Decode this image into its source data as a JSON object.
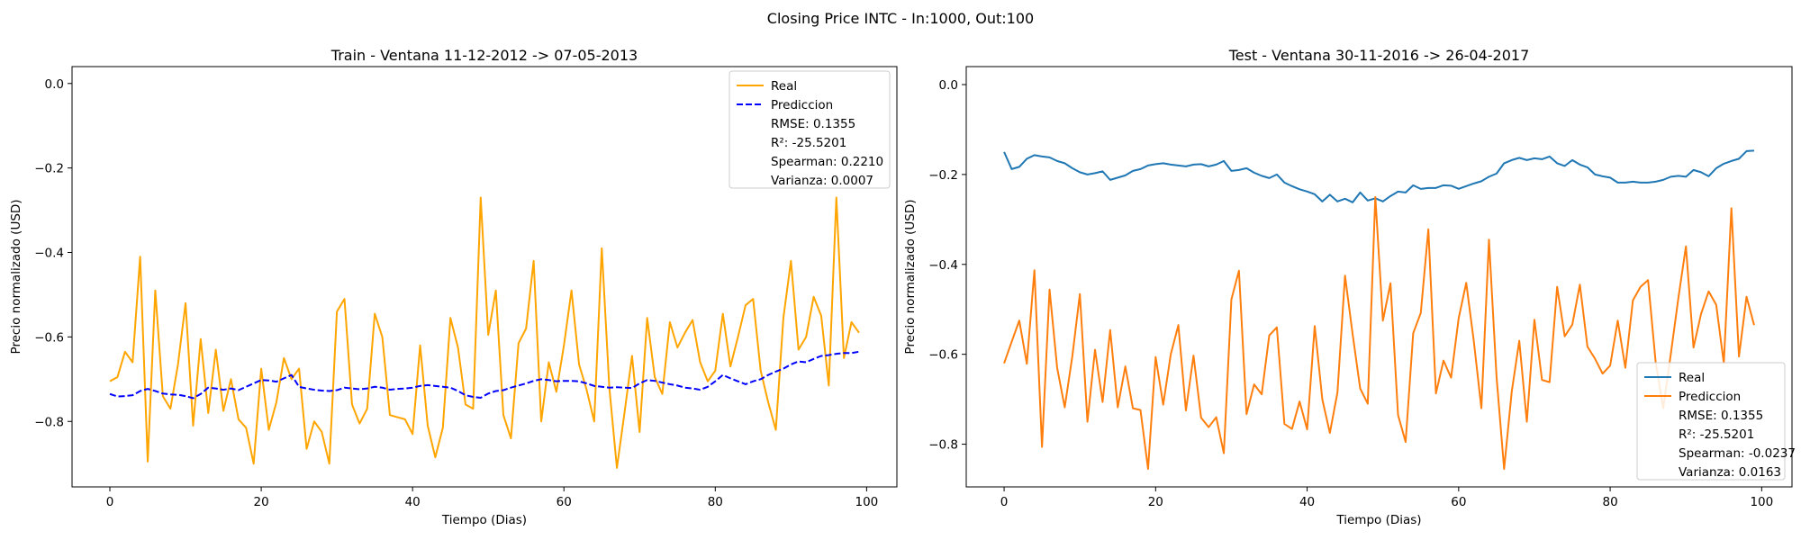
{
  "figure": {
    "suptitle": "Closing Price INTC - In:1000, Out:100"
  },
  "chart_data": [
    {
      "type": "line",
      "title": "Train - Ventana 11-12-2012 -> 07-05-2013",
      "xlabel": "Tiempo (Dias)",
      "ylabel": "Precio normalizado (USD)",
      "xlim": [
        -5,
        104
      ],
      "ylim": [
        -0.955,
        0.04
      ],
      "xticks": [
        0,
        20,
        40,
        60,
        80,
        100
      ],
      "yticks": [
        -0.8,
        -0.6,
        -0.4,
        -0.2,
        0.0
      ],
      "ytick_labels": [
        "−0.8",
        "−0.6",
        "−0.4",
        "−0.2",
        "0.0"
      ],
      "grid": false,
      "legend_position": "top-right",
      "series": [
        {
          "name": "Real",
          "color": "#FFA500",
          "style": "solid",
          "values": [
            -0.705,
            -0.695,
            -0.635,
            -0.66,
            -0.41,
            -0.895,
            -0.49,
            -0.74,
            -0.77,
            -0.665,
            -0.52,
            -0.81,
            -0.605,
            -0.78,
            -0.63,
            -0.775,
            -0.7,
            -0.795,
            -0.815,
            -0.9,
            -0.675,
            -0.82,
            -0.755,
            -0.65,
            -0.7,
            -0.675,
            -0.865,
            -0.8,
            -0.825,
            -0.9,
            -0.54,
            -0.51,
            -0.76,
            -0.805,
            -0.77,
            -0.545,
            -0.6,
            -0.785,
            -0.79,
            -0.795,
            -0.83,
            -0.62,
            -0.81,
            -0.885,
            -0.815,
            -0.555,
            -0.625,
            -0.76,
            -0.77,
            -0.27,
            -0.595,
            -0.49,
            -0.785,
            -0.84,
            -0.615,
            -0.58,
            -0.42,
            -0.8,
            -0.66,
            -0.73,
            -0.62,
            -0.49,
            -0.665,
            -0.725,
            -0.8,
            -0.39,
            -0.72,
            -0.91,
            -0.78,
            -0.645,
            -0.825,
            -0.555,
            -0.695,
            -0.735,
            -0.565,
            -0.625,
            -0.59,
            -0.56,
            -0.66,
            -0.705,
            -0.68,
            -0.545,
            -0.67,
            -0.6,
            -0.525,
            -0.51,
            -0.68,
            -0.755,
            -0.82,
            -0.555,
            -0.42,
            -0.63,
            -0.6,
            -0.505,
            -0.55,
            -0.715,
            -0.27,
            -0.65,
            -0.565,
            -0.59
          ]
        },
        {
          "name": "Prediccion",
          "color": "#0000FF",
          "style": "dashed",
          "values": [
            -0.735,
            -0.741,
            -0.74,
            -0.738,
            -0.728,
            -0.723,
            -0.728,
            -0.734,
            -0.736,
            -0.737,
            -0.74,
            -0.745,
            -0.735,
            -0.72,
            -0.722,
            -0.725,
            -0.722,
            -0.726,
            -0.718,
            -0.71,
            -0.702,
            -0.703,
            -0.706,
            -0.698,
            -0.69,
            -0.718,
            -0.722,
            -0.725,
            -0.727,
            -0.728,
            -0.726,
            -0.72,
            -0.722,
            -0.724,
            -0.722,
            -0.718,
            -0.72,
            -0.725,
            -0.723,
            -0.722,
            -0.72,
            -0.716,
            -0.714,
            -0.716,
            -0.718,
            -0.72,
            -0.728,
            -0.738,
            -0.742,
            -0.744,
            -0.734,
            -0.728,
            -0.726,
            -0.72,
            -0.715,
            -0.71,
            -0.704,
            -0.7,
            -0.702,
            -0.705,
            -0.704,
            -0.704,
            -0.705,
            -0.71,
            -0.716,
            -0.718,
            -0.72,
            -0.719,
            -0.72,
            -0.721,
            -0.71,
            -0.702,
            -0.704,
            -0.708,
            -0.712,
            -0.715,
            -0.72,
            -0.722,
            -0.725,
            -0.718,
            -0.705,
            -0.69,
            -0.698,
            -0.705,
            -0.712,
            -0.705,
            -0.7,
            -0.69,
            -0.682,
            -0.675,
            -0.665,
            -0.658,
            -0.66,
            -0.652,
            -0.645,
            -0.643,
            -0.64,
            -0.638,
            -0.638,
            -0.635
          ]
        }
      ],
      "legend_stats": [
        "RMSE: 0.1355",
        "R²: -25.5201",
        "Spearman: 0.2210",
        "Varianza: 0.0007"
      ]
    },
    {
      "type": "line",
      "title": "Test - Ventana 30-11-2016 -> 26-04-2017",
      "xlabel": "Tiempo (Dias)",
      "ylabel": "Precio normalizado (USD)",
      "xlim": [
        -5,
        104
      ],
      "ylim": [
        -0.895,
        0.04
      ],
      "xticks": [
        0,
        20,
        40,
        60,
        80,
        100
      ],
      "yticks": [
        -0.8,
        -0.6,
        -0.4,
        -0.2,
        0.0
      ],
      "ytick_labels": [
        "−0.8",
        "−0.6",
        "−0.4",
        "−0.2",
        "0.0"
      ],
      "grid": false,
      "legend_position": "bottom-right",
      "series": [
        {
          "name": "Real",
          "color": "#1F77B4",
          "style": "solid",
          "values": [
            -0.15,
            -0.188,
            -0.183,
            -0.165,
            -0.157,
            -0.16,
            -0.162,
            -0.17,
            -0.175,
            -0.186,
            -0.195,
            -0.2,
            -0.197,
            -0.193,
            -0.212,
            -0.207,
            -0.202,
            -0.192,
            -0.188,
            -0.18,
            -0.177,
            -0.175,
            -0.178,
            -0.18,
            -0.182,
            -0.178,
            -0.177,
            -0.182,
            -0.178,
            -0.17,
            -0.192,
            -0.19,
            -0.186,
            -0.196,
            -0.203,
            -0.208,
            -0.2,
            -0.218,
            -0.226,
            -0.233,
            -0.238,
            -0.244,
            -0.26,
            -0.245,
            -0.26,
            -0.254,
            -0.262,
            -0.24,
            -0.258,
            -0.253,
            -0.26,
            -0.248,
            -0.238,
            -0.24,
            -0.224,
            -0.232,
            -0.23,
            -0.23,
            -0.224,
            -0.225,
            -0.232,
            -0.226,
            -0.22,
            -0.215,
            -0.205,
            -0.198,
            -0.175,
            -0.168,
            -0.163,
            -0.168,
            -0.164,
            -0.166,
            -0.16,
            -0.175,
            -0.181,
            -0.168,
            -0.178,
            -0.184,
            -0.2,
            -0.204,
            -0.207,
            -0.218,
            -0.218,
            -0.216,
            -0.218,
            -0.218,
            -0.216,
            -0.212,
            -0.205,
            -0.203,
            -0.205,
            -0.19,
            -0.195,
            -0.204,
            -0.186,
            -0.176,
            -0.17,
            -0.165,
            -0.148,
            -0.147
          ]
        },
        {
          "name": "Prediccion",
          "color": "#FF7F0E",
          "style": "solid",
          "values": [
            -0.62,
            -0.572,
            -0.525,
            -0.621,
            -0.413,
            -0.806,
            -0.456,
            -0.63,
            -0.718,
            -0.605,
            -0.466,
            -0.75,
            -0.59,
            -0.706,
            -0.546,
            -0.718,
            -0.627,
            -0.72,
            -0.724,
            -0.855,
            -0.606,
            -0.712,
            -0.6,
            -0.535,
            -0.725,
            -0.603,
            -0.741,
            -0.762,
            -0.74,
            -0.82,
            -0.478,
            -0.414,
            -0.733,
            -0.667,
            -0.689,
            -0.558,
            -0.54,
            -0.755,
            -0.766,
            -0.705,
            -0.767,
            -0.537,
            -0.7,
            -0.775,
            -0.685,
            -0.425,
            -0.555,
            -0.676,
            -0.71,
            -0.25,
            -0.525,
            -0.442,
            -0.735,
            -0.795,
            -0.553,
            -0.508,
            -0.322,
            -0.687,
            -0.614,
            -0.652,
            -0.52,
            -0.441,
            -0.571,
            -0.72,
            -0.345,
            -0.65,
            -0.855,
            -0.684,
            -0.57,
            -0.75,
            -0.523,
            -0.657,
            -0.662,
            -0.45,
            -0.56,
            -0.534,
            -0.445,
            -0.583,
            -0.61,
            -0.643,
            -0.625,
            -0.525,
            -0.63,
            -0.48,
            -0.45,
            -0.435,
            -0.617,
            -0.72,
            -0.6,
            -0.475,
            -0.36,
            -0.585,
            -0.51,
            -0.46,
            -0.49,
            -0.62,
            -0.275,
            -0.605,
            -0.472,
            -0.535
          ]
        }
      ],
      "legend_stats": [
        "RMSE: 0.1355",
        "R²: -25.5201",
        "Spearman: -0.0237",
        "Varianza: 0.0163"
      ]
    }
  ]
}
